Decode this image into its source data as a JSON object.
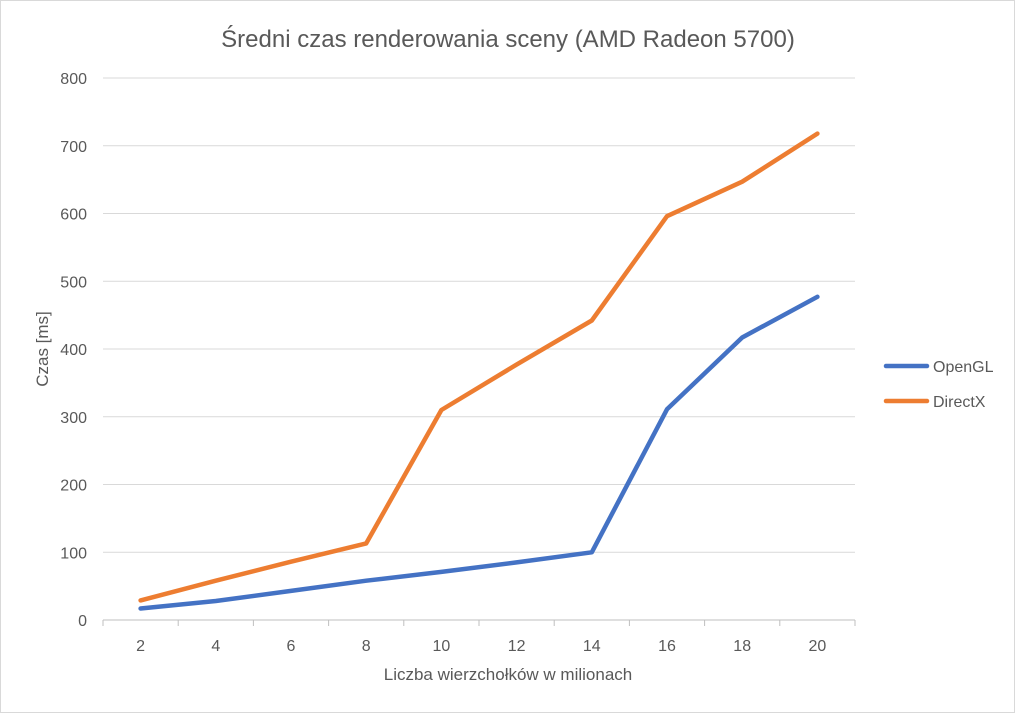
{
  "chart_data": {
    "type": "line",
    "title": "Średni czas renderowania sceny (AMD Radeon 5700)",
    "xlabel": "Liczba wierzchołków w milionach",
    "ylabel": "Czas  [ms]",
    "categories": [
      "2",
      "4",
      "6",
      "8",
      "10",
      "12",
      "14",
      "16",
      "18",
      "20"
    ],
    "ylim": [
      0,
      800
    ],
    "yticks": [
      0,
      100,
      200,
      300,
      400,
      500,
      600,
      700,
      800
    ],
    "grid": true,
    "legend": "right",
    "series": [
      {
        "name": "OpenGL",
        "color": "#4472C4",
        "values": [
          17,
          28,
          43,
          58,
          71,
          85,
          100,
          311,
          417,
          477
        ]
      },
      {
        "name": "DirectX",
        "color": "#ED7D31",
        "values": [
          29,
          58,
          86,
          113,
          310,
          377,
          442,
          596,
          647,
          718
        ]
      }
    ]
  }
}
